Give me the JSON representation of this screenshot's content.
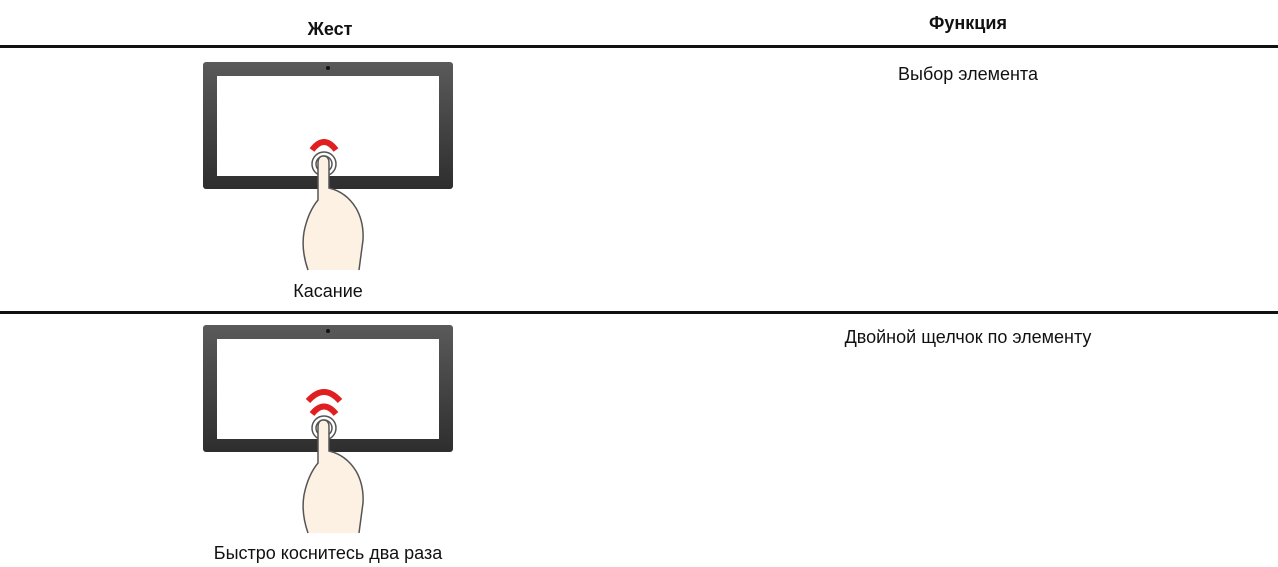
{
  "table": {
    "headers": [
      "Жест",
      "Функция"
    ],
    "rows": [
      [
        "Касание",
        "Выбор элемента"
      ],
      [
        "Быстро коснитесь два раза",
        "Двойной щелчок по элементу"
      ]
    ]
  }
}
